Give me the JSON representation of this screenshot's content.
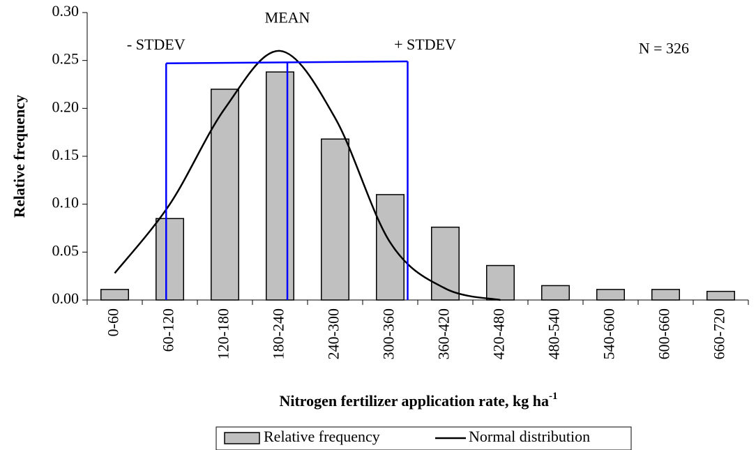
{
  "chart_data": {
    "type": "bar",
    "ylabel": "Relative frequency",
    "xlabel": "Nitrogen fertilizer application rate, kg ha",
    "xlabel_superscript": "-1",
    "categories": [
      "0-60",
      "60-120",
      "120-180",
      "180-240",
      "240-300",
      "300-360",
      "360-420",
      "420-480",
      "480-540",
      "540-600",
      "600-660",
      "660-720"
    ],
    "series": [
      {
        "name": "Relative frequency",
        "type": "bar",
        "color": "#c0c0c0",
        "values": [
          0.011,
          0.085,
          0.22,
          0.238,
          0.168,
          0.11,
          0.076,
          0.036,
          0.015,
          0.011,
          0.011,
          0.009
        ]
      },
      {
        "name": "Normal distribution",
        "type": "line",
        "color": "#000000",
        "values": [
          0.028,
          0.1,
          0.2,
          0.26,
          0.19,
          0.06,
          0.012,
          0.0,
          null,
          null,
          null,
          null
        ]
      }
    ],
    "xlim": [
      0,
      720
    ],
    "ylim": [
      0,
      0.3
    ],
    "yticks": [
      {
        "value": 0,
        "label": "0.00"
      },
      {
        "value": 0.05,
        "label": "0.05"
      },
      {
        "value": 0.1,
        "label": "0.10"
      },
      {
        "value": 0.15,
        "label": "0.15"
      },
      {
        "value": 0.2,
        "label": "0.20"
      },
      {
        "value": 0.25,
        "label": "0.25"
      },
      {
        "value": 0.3,
        "label": "0.30"
      }
    ],
    "stdev_bracket": {
      "color": "#0000ff",
      "minus_x": 86,
      "mean_x": 218,
      "plus_x": 349,
      "minus_top": 0.247,
      "plus_top": 0.249
    },
    "annotations": [
      {
        "text": "- STDEV",
        "x": 75,
        "y": 0.265
      },
      {
        "text": "MEAN",
        "x": 218,
        "y": 0.293
      },
      {
        "text": "+ STDEV",
        "x": 368,
        "y": 0.265
      },
      {
        "text": "N = 326",
        "x": 628,
        "y": 0.261
      }
    ],
    "grid": false
  }
}
